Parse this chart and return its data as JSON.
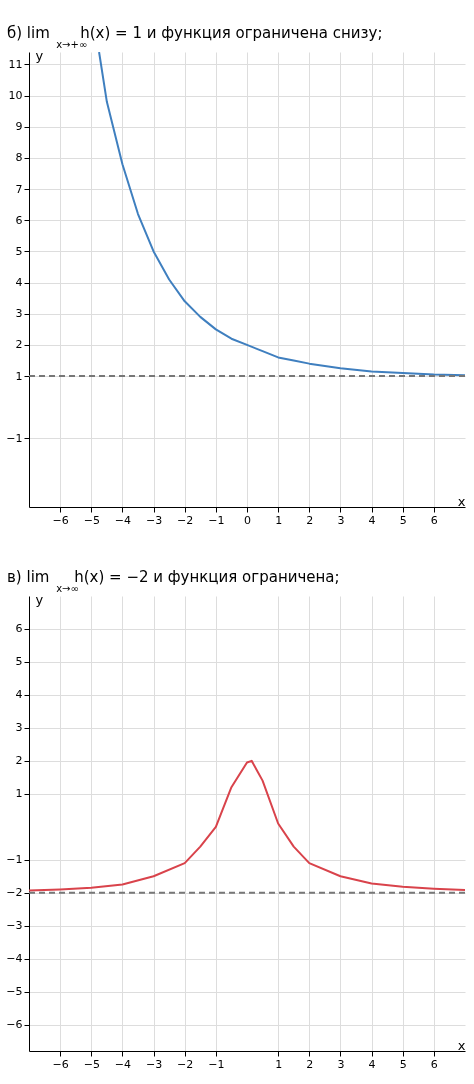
{
  "chart_data": [
    {
      "type": "line",
      "title": "б) lim$_{x→+∞}$ h(x) = 1 и функция ограничена снизу;",
      "xlabel": "x",
      "ylabel": "y",
      "xlim": [
        -7,
        7
      ],
      "ylim": [
        -3.2,
        11.4
      ],
      "xticks": [
        -6,
        -5,
        -4,
        -3,
        -2,
        -1,
        0,
        1,
        2,
        3,
        4,
        5,
        6
      ],
      "yticks": [
        -1,
        1,
        2,
        3,
        4,
        5,
        6,
        7,
        8,
        9,
        10,
        11
      ],
      "grid": true,
      "line_style": "solid",
      "marker": "none",
      "series": [
        {
          "color": "#3f7fbf",
          "x": [
            -4.75,
            -4.5,
            -4,
            -3.5,
            -3,
            -2.5,
            -2,
            -1.5,
            -1,
            -0.5,
            0,
            0.5,
            1,
            1.5,
            2,
            3,
            4,
            5,
            6,
            7
          ],
          "values": [
            11.4,
            9.8,
            7.8,
            6.2,
            5.0,
            4.1,
            3.4,
            2.9,
            2.5,
            2.2,
            2.0,
            1.8,
            1.6,
            1.5,
            1.4,
            1.25,
            1.15,
            1.1,
            1.05,
            1.03
          ]
        }
      ],
      "ref_lines": [
        {
          "axis": "y",
          "value": 1,
          "color": "#777777",
          "line_style": "dashed"
        }
      ]
    },
    {
      "type": "line",
      "title": "в) lim$_{x→∞}$ h(x) = −2 и функция ограничена;",
      "xlabel": "x",
      "ylabel": "y",
      "xlim": [
        -7,
        7
      ],
      "ylim": [
        -6.8,
        7
      ],
      "xticks": [
        -6,
        -5,
        -4,
        -3,
        -2,
        -1,
        1,
        2,
        3,
        4,
        5,
        6
      ],
      "yticks": [
        -6,
        -5,
        -4,
        -3,
        -2,
        -1,
        1,
        2,
        3,
        4,
        5,
        6
      ],
      "grid": true,
      "line_style": "solid",
      "marker": "none",
      "series": [
        {
          "color": "#d9434b",
          "x": [
            -7,
            -6,
            -5,
            -4,
            -3,
            -2,
            -1.5,
            -1,
            -0.5,
            0,
            0.15,
            0.5,
            1,
            1.5,
            2,
            3,
            4,
            5,
            6,
            7
          ],
          "values": [
            -1.93,
            -1.9,
            -1.85,
            -1.75,
            -1.5,
            -1.1,
            -0.6,
            0,
            1.2,
            1.95,
            2.0,
            1.4,
            0.1,
            -0.6,
            -1.1,
            -1.5,
            -1.72,
            -1.82,
            -1.88,
            -1.92
          ]
        }
      ],
      "ref_lines": [
        {
          "axis": "y",
          "value": -2,
          "color": "#777777",
          "line_style": "dashed"
        }
      ]
    }
  ]
}
